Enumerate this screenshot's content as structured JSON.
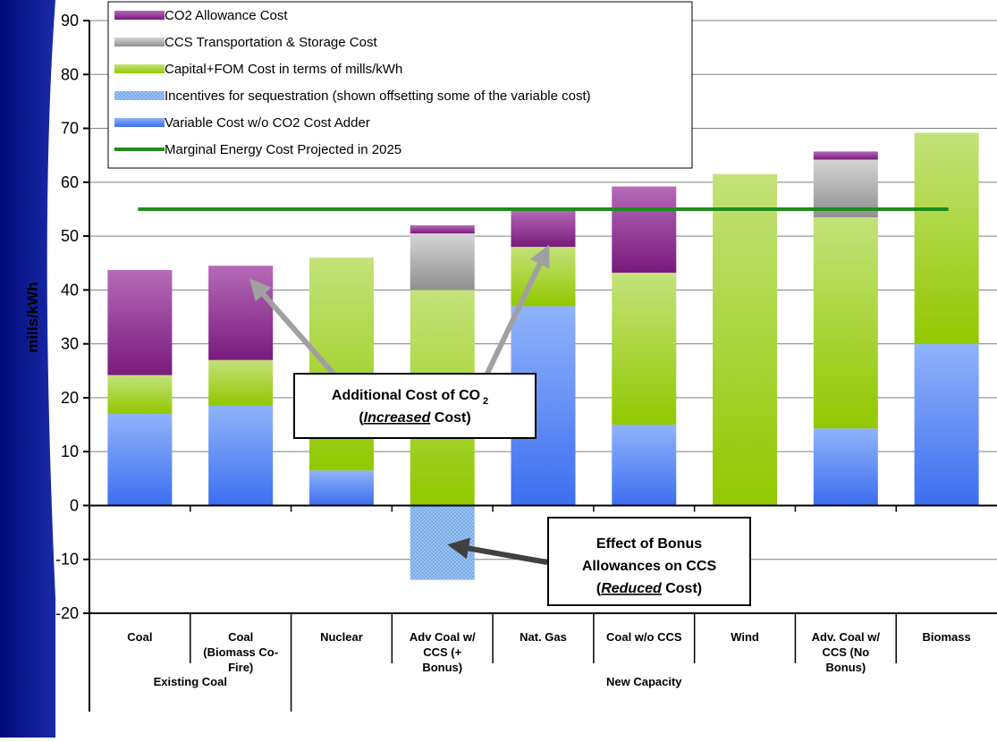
{
  "chart_data": {
    "type": "bar",
    "stacked": true,
    "title": "",
    "xlabel": "",
    "ylabel": "mills/kWh",
    "ylim": [
      -20,
      90
    ],
    "yticks": [
      -20,
      -10,
      0,
      10,
      20,
      30,
      40,
      50,
      60,
      70,
      80,
      90
    ],
    "grid": true,
    "legend_position": "top-left",
    "categories": [
      "Coal",
      "Coal (Biomass Co-Fire)",
      "Nuclear",
      "Adv Coal w/ CCS (+ Bonus)",
      "Nat. Gas",
      "Coal w/o CCS",
      "Wind",
      "Adv. Coal w/ CCS (No Bonus)",
      "Biomass"
    ],
    "category_label_lines": [
      [
        "Coal"
      ],
      [
        "Coal",
        "(Biomass Co-",
        "Fire)"
      ],
      [
        "Nuclear"
      ],
      [
        "Adv Coal w/",
        "CCS (+",
        "Bonus)"
      ],
      [
        "Nat. Gas"
      ],
      [
        "Coal w/o CCS"
      ],
      [
        "Wind"
      ],
      [
        "Adv. Coal w/",
        "CCS (No",
        "Bonus)"
      ],
      [
        "Biomass"
      ]
    ],
    "groups": [
      {
        "label": "Existing Coal",
        "span": 2
      },
      {
        "label": "New Capacity",
        "span": 7
      }
    ],
    "series": [
      {
        "name": "Variable Cost w/o CO2 Cost Adder",
        "color": "#4f81f5",
        "values": [
          17,
          18.5,
          6.5,
          0,
          37,
          15,
          0,
          14.3,
          30
        ]
      },
      {
        "name": "Incentives for sequestration (shown offsetting some of the variable cost)",
        "color": "#8fbcf0",
        "values": [
          0,
          0,
          0,
          -13.8,
          0,
          0,
          0,
          0,
          0
        ]
      },
      {
        "name": "Capital+FOM Cost in terms of mills/kWh",
        "color": "#a8d42a",
        "values": [
          7.2,
          8.5,
          39.5,
          40,
          11,
          28.2,
          61.5,
          39.2,
          39.2
        ]
      },
      {
        "name": "CCS Transportation & Storage Cost",
        "color": "#b0b0b0",
        "values": [
          0,
          0,
          0,
          10.5,
          0,
          0,
          0,
          10.7,
          0
        ]
      },
      {
        "name": "CO2 Allowance Cost",
        "color": "#8b2f8b",
        "values": [
          19.5,
          17.5,
          0,
          1.5,
          7,
          16,
          0,
          1.5,
          0
        ]
      }
    ],
    "reference_line": {
      "name": "Marginal Energy Cost Projected in 2025",
      "value": 55,
      "color": "#1e8c1e"
    },
    "legend_order": [
      "CO2 Allowance Cost",
      "CCS Transportation & Storage Cost",
      "Capital+FOM Cost in terms of mills/kWh",
      "Incentives for sequestration (shown offsetting some of the variable cost)",
      "Variable Cost w/o CO2 Cost Adder",
      "Marginal Energy Cost Projected in 2025"
    ],
    "annotations": [
      {
        "id": "increased",
        "lines": [
          "Additional Cost of CO",
          "2",
          "(",
          "Increased",
          " Cost)"
        ]
      },
      {
        "id": "reduced",
        "lines": [
          "Effect of Bonus",
          "Allowances on CCS",
          "(",
          "Reduced",
          " Cost)"
        ]
      }
    ]
  }
}
